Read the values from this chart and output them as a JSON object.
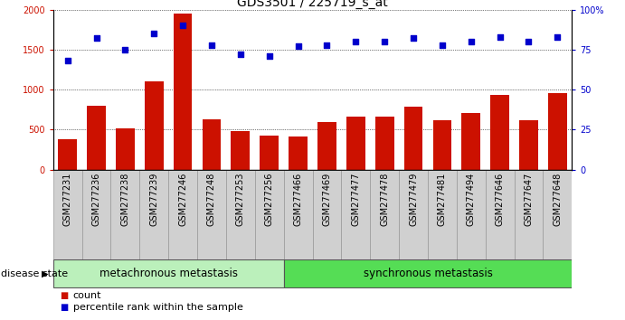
{
  "title": "GDS3501 / 225719_s_at",
  "samples": [
    "GSM277231",
    "GSM277236",
    "GSM277238",
    "GSM277239",
    "GSM277246",
    "GSM277248",
    "GSM277253",
    "GSM277256",
    "GSM277466",
    "GSM277469",
    "GSM277477",
    "GSM277478",
    "GSM277479",
    "GSM277481",
    "GSM277494",
    "GSM277646",
    "GSM277647",
    "GSM277648"
  ],
  "counts": [
    380,
    800,
    520,
    1100,
    1950,
    630,
    480,
    420,
    415,
    590,
    660,
    665,
    790,
    620,
    705,
    930,
    620,
    960
  ],
  "percentiles": [
    68,
    82,
    75,
    85,
    90,
    78,
    72,
    71,
    77,
    78,
    80,
    80,
    82,
    78,
    80,
    83,
    80,
    83
  ],
  "group1_count": 8,
  "group2_count": 10,
  "group1_label": "metachronous metastasis",
  "group2_label": "synchronous metastasis",
  "group1_color": "#bbf0bb",
  "group2_color": "#55dd55",
  "bar_color": "#cc1100",
  "dot_color": "#0000cc",
  "ylim_left": [
    0,
    2000
  ],
  "ylim_right": [
    0,
    100
  ],
  "yticks_left": [
    0,
    500,
    1000,
    1500,
    2000
  ],
  "yticks_right": [
    0,
    25,
    50,
    75,
    100
  ],
  "ytick_labels_right": [
    "0",
    "25",
    "50",
    "75",
    "100%"
  ],
  "background_color": "#ffffff",
  "disease_state_label": "disease state",
  "legend_count_label": "count",
  "legend_pct_label": "percentile rank within the sample",
  "title_fontsize": 10,
  "tick_fontsize": 7,
  "label_fontsize": 8,
  "ds_fontsize": 8.5,
  "tickbox_color": "#d0d0d0",
  "tickbox_edge": "#999999"
}
